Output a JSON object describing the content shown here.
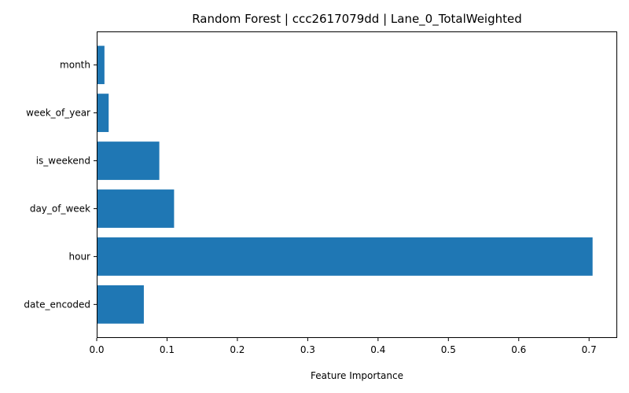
{
  "chart_data": {
    "type": "bar",
    "orientation": "horizontal",
    "title": "Random Forest | ccc2617079dd | Lane_0_TotalWeighted",
    "xlabel": "Feature Importance",
    "ylabel": "",
    "categories": [
      "date_encoded",
      "hour",
      "day_of_week",
      "is_weekend",
      "week_of_year",
      "month"
    ],
    "values": [
      0.067,
      0.705,
      0.11,
      0.089,
      0.017,
      0.011
    ],
    "xlim": [
      0,
      0.74
    ],
    "xticks": [
      0.0,
      0.1,
      0.2,
      0.3,
      0.4,
      0.5,
      0.6,
      0.7
    ],
    "xtick_labels": [
      "0.0",
      "0.1",
      "0.2",
      "0.3",
      "0.4",
      "0.5",
      "0.6",
      "0.7"
    ],
    "grid": false,
    "legend": "none",
    "bar_color": "#1f77b4"
  }
}
